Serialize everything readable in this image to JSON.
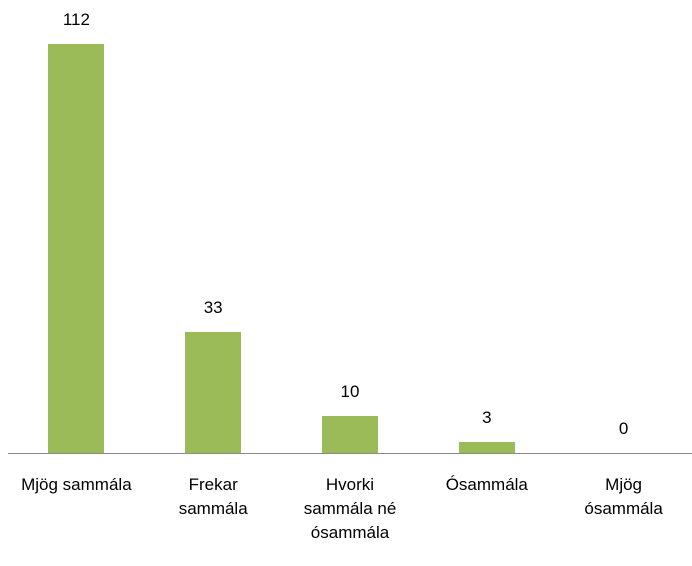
{
  "chart_data": {
    "type": "bar",
    "categories": [
      "Mjög sammála",
      "Frekar sammála",
      "Hvorki sammála né ósammála",
      "Ósammála",
      "Mjög ósammála"
    ],
    "values": [
      112,
      33,
      10,
      3,
      0
    ],
    "color": "#9bbb59"
  }
}
